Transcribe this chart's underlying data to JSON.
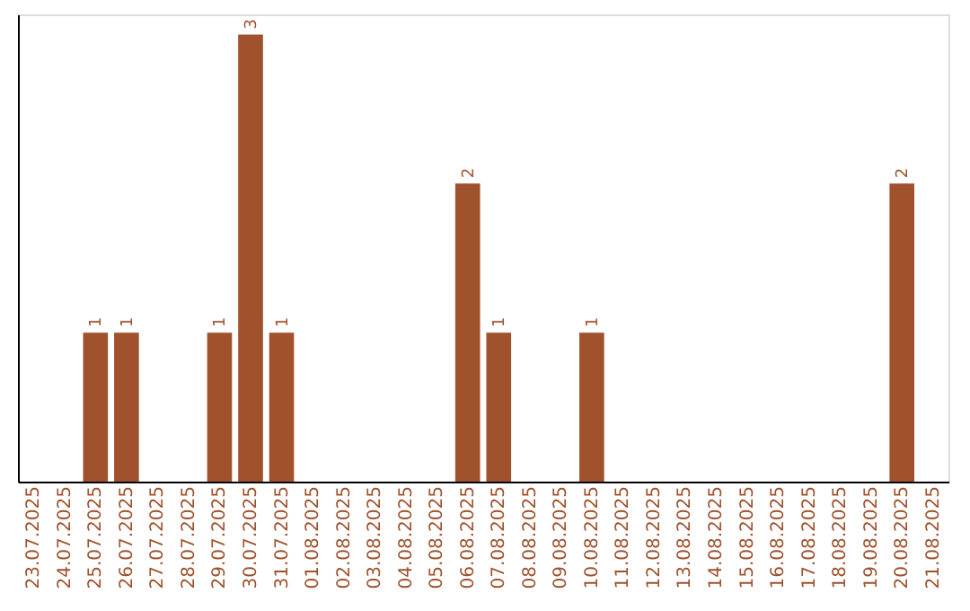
{
  "chart_data": {
    "type": "bar",
    "categories": [
      "23.07.2025",
      "24.07.2025",
      "25.07.2025",
      "26.07.2025",
      "27.07.2025",
      "28.07.2025",
      "29.07.2025",
      "30.07.2025",
      "31.07.2025",
      "01.08.2025",
      "02.08.2025",
      "03.08.2025",
      "04.08.2025",
      "05.08.2025",
      "06.08.2025",
      "07.08.2025",
      "08.08.2025",
      "09.08.2025",
      "10.08.2025",
      "11.08.2025",
      "12.08.2025",
      "13.08.2025",
      "14.08.2025",
      "15.08.2025",
      "16.08.2025",
      "17.08.2025",
      "18.08.2025",
      "19.08.2025",
      "20.08.2025",
      "21.08.2025"
    ],
    "values": [
      0,
      0,
      1,
      1,
      0,
      0,
      1,
      3,
      1,
      0,
      0,
      0,
      0,
      0,
      2,
      1,
      0,
      0,
      1,
      0,
      0,
      0,
      0,
      0,
      0,
      0,
      0,
      0,
      2,
      0
    ],
    "value_labels": [
      null,
      null,
      "1",
      "1",
      null,
      null,
      "1",
      "3",
      "1",
      null,
      null,
      null,
      null,
      null,
      "2",
      "1",
      null,
      null,
      "1",
      null,
      null,
      null,
      null,
      null,
      null,
      null,
      null,
      null,
      "2",
      null
    ],
    "color": "#a0522d",
    "tick_labels": "x"
  }
}
